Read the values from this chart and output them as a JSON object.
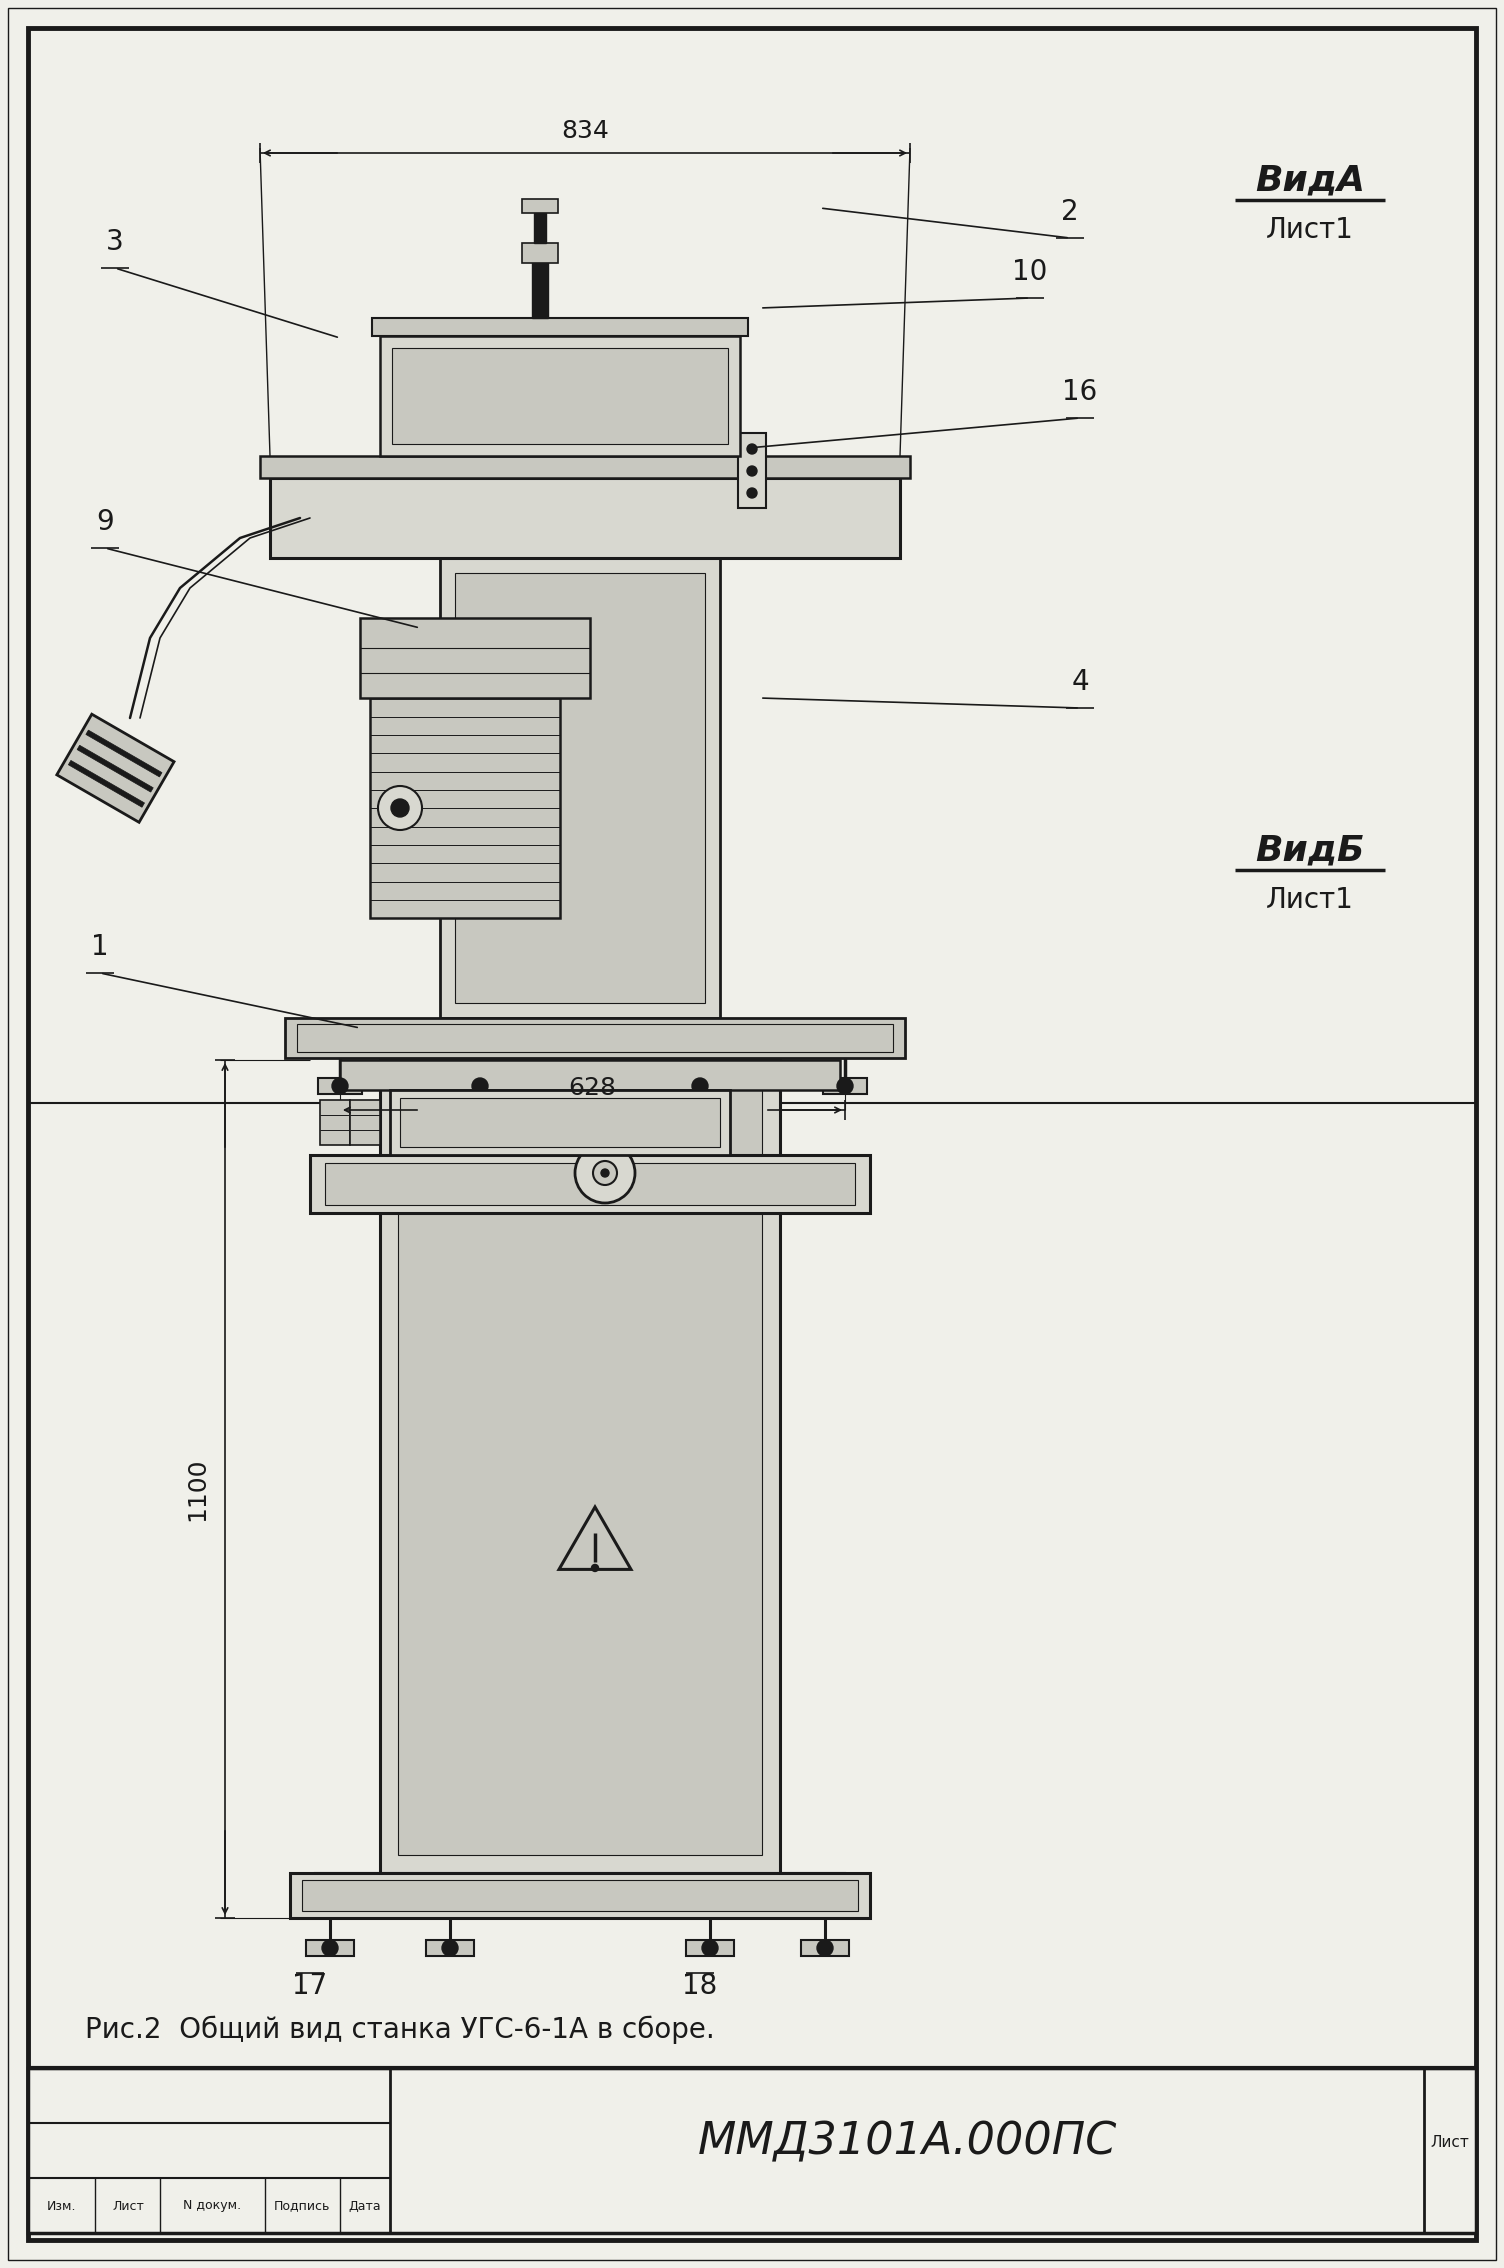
{
  "bg_color": "#f0f0ea",
  "paper_color": "#f5f5ef",
  "line_color": "#1a1a1a",
  "dark_fill": "#2a2a2a",
  "med_fill": "#888880",
  "light_fill": "#c8c8c0",
  "lighter_fill": "#d8d8d0",
  "white_fill": "#f0f0ea",
  "title_text": "ММД3101А.000ПС",
  "caption_text": "Рис.2  Общий вид станка УГС-6-1А в сборе.",
  "view_a_label": "ВидА",
  "view_a_sub": "Лист1",
  "view_b_label": "ВидБ",
  "view_b_sub": "Лист1",
  "dim_834": "834",
  "dim_628": "628",
  "dim_1100": "1100",
  "lист_text": "Лист",
  "tb_labels": [
    "Изм.",
    "Лист",
    "N докум.",
    "Подпись",
    "Дата"
  ],
  "figsize": [
    15.04,
    22.68
  ],
  "dpi": 100
}
